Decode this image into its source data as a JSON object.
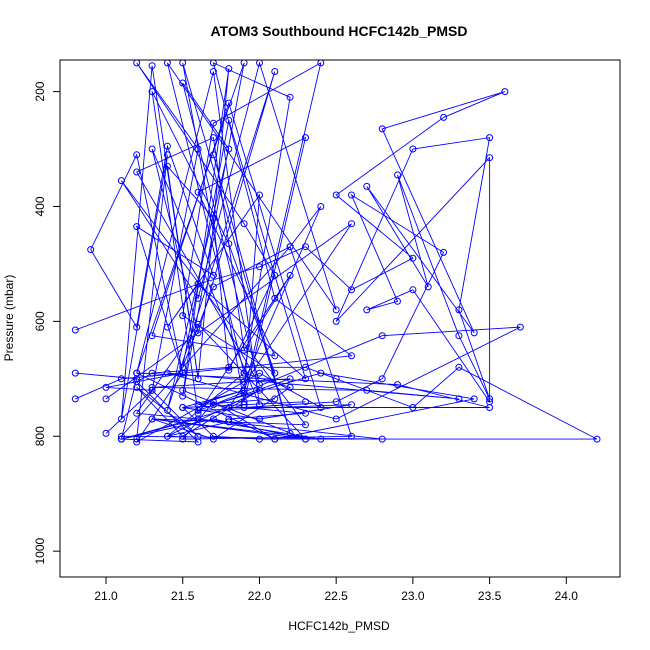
{
  "chart_data": {
    "type": "line",
    "title": "ATOM3 Southbound HCFC142b_PMSD",
    "xlabel": "HCFC142b_PMSD",
    "ylabel": "Pressure (mbar)",
    "xlim": [
      20.7,
      24.35
    ],
    "ylim": [
      1045,
      145
    ],
    "y_reversed": true,
    "x_ticks": [
      21.0,
      21.5,
      22.0,
      22.5,
      23.0,
      23.5,
      24.0
    ],
    "x_tick_labels": [
      "21.0",
      "21.5",
      "22.0",
      "22.5",
      "23.0",
      "23.5",
      "24.0"
    ],
    "y_ticks": [
      200,
      400,
      600,
      800,
      1000
    ],
    "y_tick_labels": [
      "200",
      "400",
      "600",
      "800",
      "1000"
    ],
    "grid": false,
    "color": "#0000ff",
    "series": [
      {
        "x": [
          21.2,
          21.4,
          21.1,
          21.3,
          21.6,
          21.8,
          21.5,
          21.9,
          21.2,
          21.7,
          22.0,
          21.3,
          21.6,
          22.1,
          21.4,
          21.8,
          21.5,
          22.0,
          21.2,
          21.7,
          21.9,
          22.2,
          21.6,
          21.3,
          21.8,
          22.1,
          21.5,
          21.7,
          22.4,
          21.9,
          22.0,
          21.4,
          21.6,
          22.3,
          21.8,
          21.5,
          21.7,
          22.2,
          22.4,
          21.9
        ],
        "y": [
          805,
          310,
          770,
          155,
          700,
          160,
          730,
          150,
          690,
          165,
          745,
          300,
          620,
          165,
          755,
          300,
          185,
          710,
          340,
          280,
          650,
          520,
          760,
          200,
          465,
          690,
          590,
          255,
          150,
          725,
          380,
          610,
          535,
          700,
          250,
          680,
          540,
          470,
          400,
          705
        ]
      },
      {
        "x": [
          21.0,
          21.3,
          21.6,
          21.2,
          21.5,
          22.0,
          21.4,
          21.9,
          22.2,
          21.7,
          21.3,
          21.8,
          22.3,
          21.1,
          21.6,
          22.0,
          22.5,
          21.4,
          21.9,
          22.2,
          21.7,
          22.1,
          22.6,
          21.5,
          21.2,
          22.0,
          22.4,
          21.8,
          21.3,
          22.1,
          21.6,
          22.3,
          21.9,
          21.5,
          22.2,
          21.7
        ],
        "y": [
          795,
          720,
          800,
          715,
          800,
          720,
          800,
          690,
          715,
          805,
          770,
          775,
          780,
          355,
          560,
          150,
          580,
          150,
          690,
          210,
          150,
          560,
          660,
          690,
          810,
          690,
          750,
          220,
          625,
          660,
          375,
          280,
          740,
          150,
          795,
          310
        ]
      },
      {
        "x": [
          20.8,
          21.6,
          22.0,
          22.3,
          22.6,
          23.0,
          22.5,
          23.2,
          23.6,
          22.8,
          23.4,
          22.7,
          23.1,
          22.9,
          23.3,
          23.5,
          23.3,
          23.5,
          23.0,
          22.5,
          23.5,
          23.5,
          23.0,
          22.7,
          22.9,
          22.6,
          23.2,
          22.8,
          22.5,
          21.9,
          22.3,
          21.8
        ],
        "y": [
          615,
          535,
          505,
          470,
          545,
          490,
          380,
          245,
          200,
          265,
          620,
          365,
          540,
          345,
          625,
          735,
          580,
          280,
          300,
          600,
          315,
          740,
          545,
          580,
          565,
          380,
          480,
          700,
          740,
          750,
          760,
          770
        ]
      },
      {
        "x": [
          21.1,
          21.9,
          22.3,
          21.5,
          22.0,
          22.6,
          21.6,
          22.2,
          21.3,
          22.7,
          23.3,
          21.4,
          22.5,
          23.7,
          22.8,
          21.7,
          22.4,
          23.4,
          22.1,
          21.2,
          22.9,
          23.5,
          21.8,
          22.6,
          21.0
        ],
        "y": [
          805,
          745,
          740,
          750,
          770,
          745,
          755,
          700,
          715,
          720,
          735,
          690,
          770,
          610,
          625,
          745,
          690,
          735,
          805,
          690,
          710,
          750,
          750,
          430,
          735
        ]
      },
      {
        "x": [
          21.6,
          21.1,
          21.7,
          22.3,
          21.3,
          22.4,
          21.6,
          22.8,
          21.1,
          22.2,
          22.6,
          21.5,
          21.7,
          22.1,
          21.4,
          21.8,
          21.2,
          21.6,
          22.3,
          21.5
        ],
        "y": [
          770,
          805,
          770,
          805,
          770,
          805,
          770,
          805,
          800,
          470,
          800,
          805,
          740,
          805,
          800,
          775,
          760,
          605,
          805,
          720
        ]
      },
      {
        "x": [
          20.8,
          21.1,
          21.5,
          21.2,
          20.9,
          21.2,
          21.4,
          21.7,
          21.2,
          21.5,
          21.0,
          21.3,
          21.6,
          21.2,
          21.9,
          22.1,
          21.8,
          21.7,
          21.4,
          21.6
        ],
        "y": [
          735,
          700,
          690,
          310,
          475,
          610,
          295,
          520,
          435,
          690,
          715,
          720,
          300,
          150,
          430,
          520,
          685,
          420,
          330,
          700
        ]
      },
      {
        "x": [
          20.8,
          21.2,
          21.1,
          21.6,
          21.2,
          21.3,
          21.8,
          22.3,
          22.5,
          23.0,
          23.3,
          24.2,
          22.0,
          21.7,
          21.5,
          21.9,
          21.6,
          22.1
        ],
        "y": [
          690,
          700,
          805,
          810,
          705,
          690,
          680,
          680,
          700,
          750,
          680,
          805,
          805,
          800,
          750,
          720,
          745,
          735
        ]
      }
    ]
  }
}
